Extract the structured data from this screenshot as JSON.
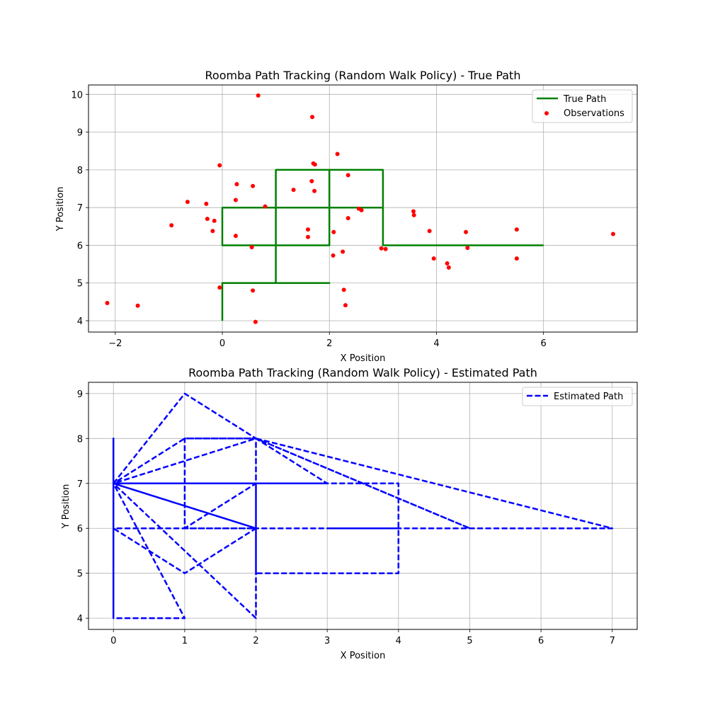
{
  "colors": {
    "true_path": "#008000",
    "observations": "#ff0000",
    "estimated_path": "#0000ff",
    "grid": "#b0b0b0",
    "axes": "#000000"
  },
  "chart_data": [
    {
      "type": "line",
      "title": "Roomba Path Tracking (Random Walk Policy) - True Path",
      "xlabel": "X Position",
      "ylabel": "Y Position",
      "xlim": [
        -2.5,
        7.75
      ],
      "ylim": [
        3.7,
        10.25
      ],
      "xticks": [
        -2,
        0,
        2,
        4,
        6
      ],
      "yticks": [
        4,
        5,
        6,
        7,
        8,
        9,
        10
      ],
      "grid": true,
      "legend_position": "upper right",
      "legend": [
        "True Path",
        "Observations"
      ],
      "series": [
        {
          "name": "True Path",
          "kind": "line",
          "color": "#008000",
          "x": [
            0,
            0,
            1,
            2,
            1,
            1,
            0,
            0,
            1,
            1,
            2,
            2,
            3,
            3,
            2,
            2,
            1,
            1,
            2,
            2,
            3,
            3,
            4,
            5,
            6
          ],
          "y": [
            4,
            5,
            5,
            5,
            5,
            6,
            6,
            7,
            7,
            6,
            6,
            8,
            8,
            7,
            7,
            8,
            8,
            7,
            7,
            8,
            8,
            6,
            6,
            6,
            6
          ]
        },
        {
          "name": "Observations",
          "kind": "scatter",
          "color": "#ff0000",
          "x": [
            -2.15,
            -1.58,
            -0.95,
            -0.65,
            -0.3,
            -0.28,
            -0.18,
            -0.15,
            -0.05,
            -0.05,
            0.25,
            0.25,
            0.27,
            0.55,
            0.57,
            0.57,
            0.62,
            0.67,
            0.8,
            1.33,
            1.6,
            1.6,
            1.67,
            1.68,
            1.7,
            1.72,
            1.73,
            2.07,
            2.08,
            2.15,
            2.25,
            2.27,
            2.3,
            2.35,
            2.35,
            2.55,
            2.6,
            2.97,
            3.05,
            3.57,
            3.58,
            3.87,
            3.95,
            4.2,
            4.23,
            4.55,
            4.58,
            5.5,
            5.5,
            7.3
          ],
          "y": [
            4.47,
            4.4,
            6.53,
            7.15,
            7.1,
            6.7,
            6.38,
            6.65,
            8.12,
            4.88,
            6.25,
            7.2,
            7.62,
            5.95,
            4.8,
            7.57,
            3.97,
            9.97,
            7.03,
            7.47,
            6.42,
            6.22,
            7.7,
            9.4,
            8.17,
            7.44,
            8.14,
            5.73,
            6.35,
            8.42,
            5.83,
            4.82,
            4.41,
            6.72,
            7.86,
            6.97,
            6.93,
            5.92,
            5.9,
            6.9,
            6.8,
            6.38,
            5.65,
            5.52,
            5.41,
            6.35,
            5.93,
            6.42,
            5.65,
            6.3
          ]
        }
      ]
    },
    {
      "type": "line",
      "title": "Roomba Path Tracking (Random Walk Policy) - Estimated Path",
      "xlabel": "X Position",
      "ylabel": "Y Position",
      "xlim": [
        -0.35,
        7.35
      ],
      "ylim": [
        3.75,
        9.25
      ],
      "xticks": [
        0,
        1,
        2,
        3,
        4,
        5,
        6,
        7
      ],
      "yticks": [
        4,
        5,
        6,
        7,
        8,
        9
      ],
      "grid": true,
      "legend_position": "upper right",
      "legend": [
        "Estimated Path"
      ],
      "series": [
        {
          "name": "Estimated Path",
          "kind": "line",
          "dashed": true,
          "color": "#0000ff",
          "x": [
            0,
            0,
            0,
            1,
            2,
            2,
            0,
            1,
            1,
            2,
            2,
            0,
            0,
            2,
            2,
            1,
            0,
            4,
            4,
            2,
            2,
            4,
            3,
            5,
            7,
            2,
            0,
            0,
            1,
            0,
            2,
            2,
            3,
            0,
            2,
            1,
            0,
            0,
            2,
            2,
            1,
            1,
            2,
            5,
            2,
            1,
            0,
            0
          ],
          "y": [
            4,
            8,
            7,
            7,
            7,
            6,
            7,
            7,
            6,
            6,
            4,
            7,
            6,
            6,
            8,
            8,
            7,
            7,
            5,
            5,
            6,
            6,
            6,
            6,
            6,
            8,
            7,
            4,
            4,
            7,
            7,
            8,
            7,
            7,
            6,
            5,
            6,
            7,
            6,
            7,
            6,
            8,
            8,
            6,
            8,
            9,
            7,
            4
          ]
        }
      ]
    }
  ]
}
